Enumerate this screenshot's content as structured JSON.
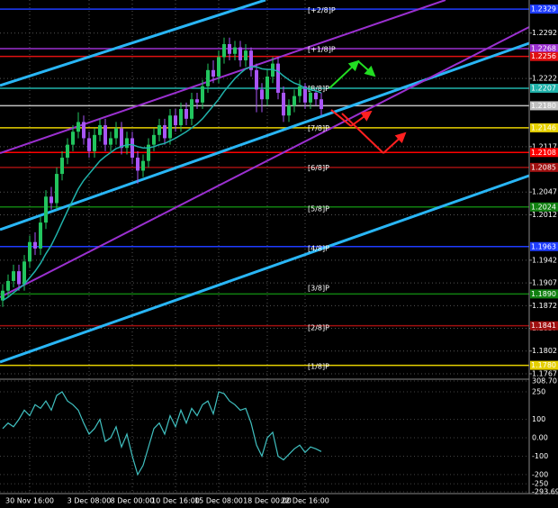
{
  "chart_data": {
    "type": "candlestick",
    "ylim": [
      1.176,
      1.2343
    ],
    "yticks": [
      1.2292,
      1.2222,
      1.2117,
      1.2047,
      1.2012,
      1.1942,
      1.1907,
      1.1872,
      1.1837,
      1.1802,
      1.1767
    ],
    "grid": true,
    "up_color": "#22c55e",
    "down_color": "#a855f7",
    "categories": [
      null,
      null,
      null,
      null,
      null,
      "30 Nov 16:00",
      null,
      null,
      null,
      null,
      null,
      null,
      null,
      null,
      null,
      null,
      "3 Dec 08:00",
      null,
      null,
      null,
      null,
      null,
      null,
      null,
      "8 Dec 00:00",
      null,
      null,
      null,
      null,
      null,
      null,
      null,
      "10 Dec 16:00",
      null,
      null,
      null,
      null,
      null,
      null,
      null,
      "15 Dec 08:00",
      null,
      null,
      null,
      null,
      null,
      null,
      null,
      null,
      "18 Dec 00:00",
      null,
      null,
      null,
      null,
      null,
      null,
      "22 Dec 16:00",
      null,
      null,
      null
    ],
    "open": [
      1.188,
      1.1895,
      1.191,
      1.1925,
      1.1905,
      1.194,
      1.197,
      1.196,
      1.2,
      1.204,
      1.203,
      1.2075,
      1.21,
      1.212,
      1.214,
      1.2155,
      1.213,
      1.211,
      1.2135,
      1.215,
      1.212,
      1.213,
      1.2145,
      1.2115,
      1.213,
      1.21,
      1.208,
      1.2095,
      1.212,
      1.2135,
      1.215,
      1.213,
      1.2165,
      1.215,
      1.2175,
      1.216,
      1.219,
      1.2185,
      1.221,
      1.2235,
      1.2225,
      1.2255,
      1.2275,
      1.226,
      1.227,
      1.225,
      1.2265,
      1.2235,
      1.2205,
      1.219,
      1.2225,
      1.2245,
      1.22,
      1.2165,
      1.218,
      1.2195,
      1.221,
      1.2185,
      1.22,
      1.219
    ],
    "high": [
      1.1905,
      1.192,
      1.1935,
      1.1935,
      1.195,
      1.198,
      1.1985,
      1.201,
      1.205,
      1.2055,
      1.2085,
      1.211,
      1.213,
      1.215,
      1.217,
      1.2165,
      1.214,
      1.2145,
      1.216,
      1.216,
      1.214,
      1.2155,
      1.2155,
      1.214,
      1.214,
      1.211,
      1.2105,
      1.213,
      1.2145,
      1.216,
      1.216,
      1.2175,
      1.2175,
      1.2185,
      1.2185,
      1.22,
      1.22,
      1.222,
      1.2245,
      1.225,
      1.2265,
      1.2285,
      1.2285,
      1.228,
      1.228,
      1.2275,
      1.227,
      1.2245,
      1.2215,
      1.2235,
      1.2255,
      1.2255,
      1.221,
      1.219,
      1.2205,
      1.222,
      1.2215,
      1.221,
      1.2205,
      1.22
    ],
    "low": [
      1.187,
      1.1885,
      1.19,
      1.1895,
      1.1895,
      1.193,
      1.195,
      1.195,
      1.199,
      1.202,
      1.202,
      1.2065,
      1.209,
      1.211,
      1.213,
      1.212,
      1.21,
      1.21,
      1.2125,
      1.211,
      1.211,
      1.212,
      1.2105,
      1.2105,
      1.209,
      1.206,
      1.207,
      1.2085,
      1.211,
      1.2125,
      1.212,
      1.212,
      1.214,
      1.214,
      1.215,
      1.215,
      1.2175,
      1.2175,
      1.22,
      1.2215,
      1.2215,
      1.2245,
      1.225,
      1.225,
      1.224,
      1.224,
      1.2225,
      1.217,
      1.217,
      1.218,
      1.2215,
      1.219,
      1.2155,
      1.2155,
      1.217,
      1.2185,
      1.2175,
      1.2175,
      1.218,
      1.2165
    ],
    "close": [
      1.1895,
      1.191,
      1.1925,
      1.1905,
      1.194,
      1.197,
      1.196,
      1.2,
      1.204,
      1.203,
      1.2075,
      1.21,
      1.212,
      1.214,
      1.2155,
      1.213,
      1.211,
      1.2135,
      1.215,
      1.212,
      1.213,
      1.2145,
      1.2115,
      1.213,
      1.21,
      1.208,
      1.2095,
      1.212,
      1.2135,
      1.215,
      1.213,
      1.2165,
      1.215,
      1.2175,
      1.216,
      1.219,
      1.2185,
      1.221,
      1.2235,
      1.2225,
      1.2255,
      1.2275,
      1.226,
      1.227,
      1.225,
      1.2265,
      1.2235,
      1.2205,
      1.219,
      1.2225,
      1.2245,
      1.22,
      1.2165,
      1.218,
      1.2195,
      1.221,
      1.2185,
      1.22,
      1.219,
      1.2175
    ],
    "ma": [
      1.188,
      1.1885,
      1.1892,
      1.1898,
      1.1905,
      1.1915,
      1.1925,
      1.1937,
      1.1952,
      1.1965,
      1.1982,
      1.2,
      1.2018,
      1.2035,
      1.2052,
      1.2065,
      1.2075,
      1.2085,
      1.2095,
      1.2102,
      1.2108,
      1.2114,
      1.2117,
      1.212,
      1.212,
      1.2117,
      1.2115,
      1.2115,
      1.2117,
      1.212,
      1.2122,
      1.2126,
      1.213,
      1.2135,
      1.214,
      1.2146,
      1.2152,
      1.216,
      1.217,
      1.218,
      1.219,
      1.2202,
      1.2212,
      1.2222,
      1.223,
      1.2237,
      1.224,
      1.224,
      1.2237,
      1.2236,
      1.2236,
      1.2233,
      1.2226,
      1.222,
      1.2215,
      1.2212,
      1.2207,
      1.2205,
      1.2203,
      1.22
    ],
    "ma_color": "#20b2aa",
    "levels": [
      {
        "value": 1.2329,
        "label": "1.2329",
        "color": "#1e3cff"
      },
      {
        "value": 1.2268,
        "label": "1.2268",
        "color": "#9b30d0"
      },
      {
        "value": 1.2256,
        "label": "1.2256",
        "color": "#e01010"
      },
      {
        "value": 1.2207,
        "label": "1.2207",
        "color": "#20b2aa"
      },
      {
        "value": 1.218,
        "label": "1.2180",
        "color": "#c0c0c0"
      },
      {
        "value": 1.2146,
        "label": "1.2146",
        "color": "#e6d000"
      },
      {
        "value": 1.2108,
        "label": "1.2108",
        "color": "#ff0000"
      },
      {
        "value": 1.2085,
        "label": "1.2085",
        "color": "#a01010"
      },
      {
        "value": 1.2024,
        "label": "1.2024",
        "color": "#108010"
      },
      {
        "value": 1.1963,
        "label": "1.1963",
        "color": "#1e3cff"
      },
      {
        "value": 1.189,
        "label": "1.1890",
        "color": "#108010"
      },
      {
        "value": 1.1841,
        "label": "1.1841",
        "color": "#a01010"
      },
      {
        "value": 1.178,
        "label": "1.1780",
        "color": "#e6d000"
      }
    ],
    "murray": [
      {
        "value": 1.232,
        "label": "[+2/8]P",
        "color": "#1e3cff"
      },
      {
        "value": 1.226,
        "label": "[+1/8]P",
        "color": "#9b30d0"
      },
      {
        "value": 1.2199,
        "label": "[8/8]P",
        "color": "#20b2aa"
      },
      {
        "value": 1.2138,
        "label": "[7/8]P",
        "color": "#e6d000"
      },
      {
        "value": 1.2077,
        "label": "[6/8]P",
        "color": "#a01010"
      },
      {
        "value": 1.2014,
        "label": "[5/8]P",
        "color": "#108010"
      },
      {
        "value": 1.1953,
        "label": "[4/8]P",
        "color": "#1e3cff"
      },
      {
        "value": 1.1892,
        "label": "[3/8]P",
        "color": "#108010"
      },
      {
        "value": 1.1831,
        "label": "[2/8]P",
        "color": "#a01010"
      },
      {
        "value": 1.1771,
        "label": "[1/8]P",
        "color": "#e6d000"
      }
    ],
    "oscillator": {
      "ylim": [
        -293.695,
        308.7016
      ],
      "yticks": [
        308.7016,
        250,
        100,
        {
          "value": 0,
          "label": "0.00"
        },
        -100,
        -200,
        -250,
        {
          "value": -293.695,
          "label": "-293.6950"
        }
      ],
      "color": "#40c0c0",
      "values": [
        50,
        80,
        60,
        100,
        150,
        120,
        180,
        160,
        200,
        150,
        230,
        250,
        200,
        180,
        150,
        80,
        20,
        50,
        100,
        -20,
        0,
        60,
        -50,
        20,
        -100,
        -200,
        -150,
        -50,
        50,
        80,
        20,
        120,
        60,
        150,
        80,
        160,
        120,
        180,
        200,
        130,
        250,
        240,
        200,
        180,
        150,
        160,
        80,
        -40,
        -100,
        0,
        30,
        -100,
        -120,
        -90,
        -60,
        -40,
        -80,
        -50,
        -60,
        -75
      ]
    }
  }
}
